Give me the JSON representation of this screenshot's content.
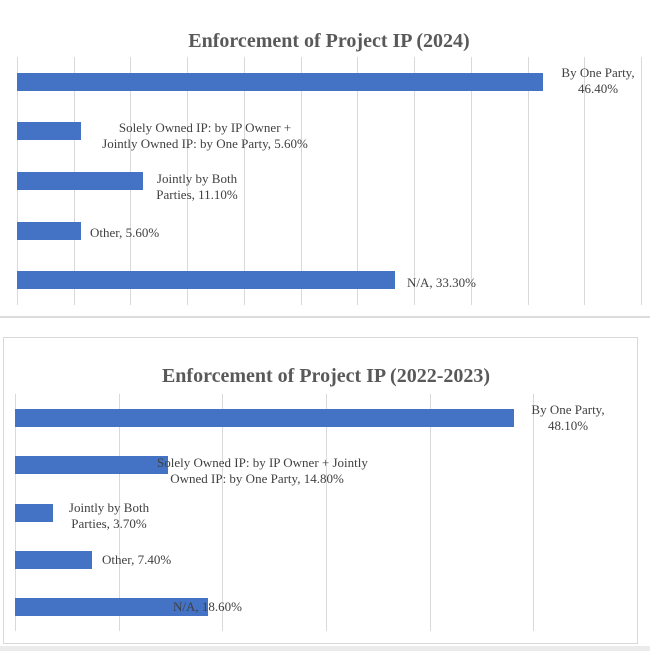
{
  "colors": {
    "bar": "#4472C4",
    "gridline": "#D9D9D9",
    "panel_border": "#D9D9D9",
    "title_text": "#595959",
    "label_text": "#404040",
    "background": "#FFFFFF",
    "bottom_strip": "#EBEBEB"
  },
  "chart_data": [
    {
      "type": "bar",
      "orientation": "horizontal",
      "title": "Enforcement of Project IP (2024)",
      "categories": [
        "By One Party",
        "Solely Owned IP: by IP Owner + Jointly Owned IP: by One Party",
        "Jointly by Both Parties",
        "Other",
        "N/A"
      ],
      "values": [
        46.4,
        5.6,
        11.1,
        5.6,
        33.3
      ],
      "value_format": "percent",
      "xlim": [
        0,
        55
      ],
      "grid_step": 5,
      "grid": true,
      "legend": false,
      "axis_tick_labels": "hidden",
      "data_labels": [
        [
          "By One Party,",
          "46.40%"
        ],
        [
          "Solely Owned IP: by IP Owner +",
          "Jointly Owned IP: by One Party, 5.60%"
        ],
        [
          "Jointly by Both",
          "Parties, 11.10%"
        ],
        [
          "Other, 5.60%"
        ],
        [
          "N/A, 33.30%"
        ]
      ]
    },
    {
      "type": "bar",
      "orientation": "horizontal",
      "title": "Enforcement of Project IP (2022-2023)",
      "categories": [
        "By One Party",
        "Solely Owned IP: by IP Owner + Jointly Owned IP: by One Party",
        "Jointly by Both Parties",
        "Other",
        "N/A"
      ],
      "values": [
        48.1,
        14.8,
        3.7,
        7.4,
        18.6
      ],
      "value_format": "percent",
      "xlim": [
        0,
        60
      ],
      "grid_step": 10,
      "grid": true,
      "legend": false,
      "axis_tick_labels": "hidden",
      "data_labels": [
        [
          "By One Party,",
          "48.10%"
        ],
        [
          "Solely Owned IP: by IP Owner + Jointly",
          "Owned IP: by One Party, 14.80%"
        ],
        [
          "Jointly by Both",
          "Parties, 3.70%"
        ],
        [
          "Other, 7.40%"
        ],
        [
          "N/A, 18.60%"
        ]
      ]
    }
  ]
}
